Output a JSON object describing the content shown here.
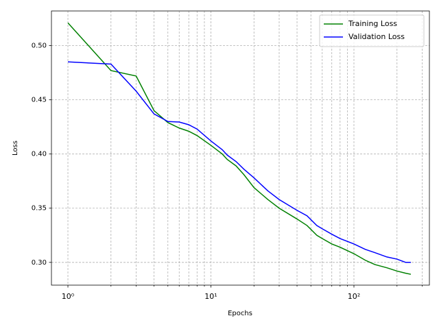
{
  "chart_data": {
    "type": "line",
    "xlabel": "Epochs",
    "ylabel": "Loss",
    "x": [
      1,
      2,
      3,
      4,
      5,
      6,
      7,
      8,
      10,
      12,
      13,
      15,
      17,
      20,
      25,
      30,
      40,
      47,
      55,
      60,
      70,
      80,
      100,
      120,
      140,
      170,
      200,
      230,
      250
    ],
    "series": [
      {
        "name": "Training Loss",
        "color": "#008000",
        "values": [
          0.521,
          0.477,
          0.472,
          0.44,
          0.429,
          0.424,
          0.421,
          0.417,
          0.408,
          0.4,
          0.395,
          0.389,
          0.381,
          0.369,
          0.358,
          0.35,
          0.34,
          0.334,
          0.325,
          0.322,
          0.317,
          0.314,
          0.308,
          0.302,
          0.298,
          0.295,
          0.292,
          0.29,
          0.289
        ]
      },
      {
        "name": "Validation Loss",
        "color": "#0000ff",
        "values": [
          0.485,
          0.483,
          0.458,
          0.437,
          0.43,
          0.4295,
          0.427,
          0.423,
          0.412,
          0.404,
          0.399,
          0.393,
          0.386,
          0.378,
          0.366,
          0.358,
          0.348,
          0.343,
          0.334,
          0.331,
          0.326,
          0.322,
          0.317,
          0.312,
          0.309,
          0.305,
          0.303,
          0.3,
          0.3
        ]
      }
    ],
    "xscale": "log",
    "xlim": [
      0.767,
      337
    ],
    "xticks": [
      {
        "value": 1,
        "label": "10⁰"
      },
      {
        "value": 10,
        "label": "10¹"
      },
      {
        "value": 100,
        "label": "10²"
      }
    ],
    "xminorticks": [
      2,
      3,
      4,
      5,
      6,
      7,
      8,
      9,
      20,
      30,
      40,
      50,
      60,
      70,
      80,
      90,
      200,
      300
    ],
    "ylim": [
      0.279,
      0.532
    ],
    "yticks": [
      {
        "value": 0.3,
        "label": "0.30"
      },
      {
        "value": 0.35,
        "label": "0.35"
      },
      {
        "value": 0.4,
        "label": "0.40"
      },
      {
        "value": 0.45,
        "label": "0.45"
      },
      {
        "value": 0.5,
        "label": "0.50"
      }
    ],
    "grid": true,
    "legend_loc": "upper right"
  }
}
